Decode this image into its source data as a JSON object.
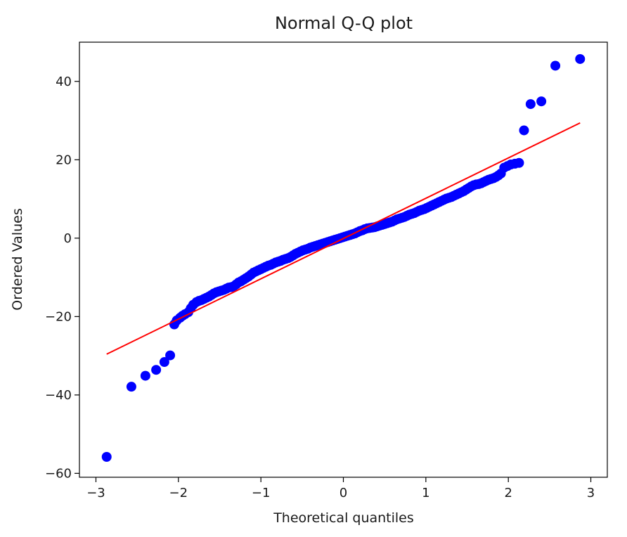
{
  "chart_data": {
    "type": "scatter",
    "title": "Normal Q-Q plot",
    "xlabel": "Theoretical quantiles",
    "ylabel": "Ordered Values",
    "xlim": [
      -3.2,
      3.2
    ],
    "ylim": [
      -61,
      50
    ],
    "grid": false,
    "x_ticks": [
      -3,
      -2,
      -1,
      0,
      1,
      2,
      3
    ],
    "y_ticks": [
      -60,
      -40,
      -20,
      0,
      20,
      40
    ],
    "x_tick_labels": [
      "−3",
      "−2",
      "−1",
      "0",
      "1",
      "2",
      "3"
    ],
    "y_tick_labels": [
      "−60",
      "−40",
      "−20",
      "0",
      "20",
      "40"
    ],
    "colors": {
      "points": "#0000ff",
      "fit_line": "#ff0000"
    },
    "fit_line": {
      "x": [
        -2.87,
        2.87
      ],
      "y": [
        -29.6,
        29.4
      ]
    },
    "series": [
      {
        "x": [
          -2.87,
          -2.57,
          -2.4,
          -2.27,
          -2.17,
          -2.1,
          -2.05,
          -2.02,
          -1.98,
          -1.95,
          -1.92,
          -1.88,
          -1.85,
          -1.82,
          -1.78,
          -1.75,
          -1.72,
          -1.69,
          -1.66,
          -1.63,
          -1.6,
          -1.57,
          -1.54,
          -1.51,
          -1.48,
          -1.45,
          -1.42,
          -1.39,
          -1.36,
          -1.33,
          -1.3,
          -1.27,
          -1.24,
          -1.21,
          -1.18,
          -1.15,
          -1.12,
          -1.09,
          -1.06,
          -1.03,
          -1.0,
          -0.97,
          -0.94,
          -0.91,
          -0.88,
          -0.85,
          -0.82,
          -0.79,
          -0.76,
          -0.73,
          -0.7,
          -0.67,
          -0.64,
          -0.61,
          -0.58,
          -0.55,
          -0.52,
          -0.49,
          -0.46,
          -0.43,
          -0.4,
          -0.37,
          -0.34,
          -0.31,
          -0.28,
          -0.25,
          -0.22,
          -0.19,
          -0.16,
          -0.13,
          -0.1,
          -0.07,
          -0.04,
          -0.01,
          0.02,
          0.05,
          0.08,
          0.11,
          0.14,
          0.17,
          0.2,
          0.23,
          0.26,
          0.29,
          0.32,
          0.35,
          0.38,
          0.41,
          0.44,
          0.47,
          0.5,
          0.53,
          0.56,
          0.59,
          0.62,
          0.65,
          0.68,
          0.71,
          0.74,
          0.77,
          0.8,
          0.83,
          0.86,
          0.89,
          0.92,
          0.95,
          0.98,
          1.01,
          1.04,
          1.07,
          1.1,
          1.13,
          1.16,
          1.19,
          1.22,
          1.25,
          1.28,
          1.31,
          1.34,
          1.37,
          1.4,
          1.43,
          1.46,
          1.49,
          1.52,
          1.55,
          1.58,
          1.61,
          1.64,
          1.67,
          1.7,
          1.73,
          1.76,
          1.79,
          1.82,
          1.85,
          1.88,
          1.91,
          1.95,
          1.99,
          2.03,
          2.08,
          2.13,
          2.19,
          2.27,
          2.4,
          2.57,
          2.87
        ],
        "y": [
          -55.8,
          -37.9,
          -35.1,
          -33.6,
          -31.6,
          -29.9,
          -22.0,
          -21.0,
          -20.3,
          -19.8,
          -19.4,
          -18.9,
          -17.9,
          -17.0,
          -16.3,
          -16.0,
          -15.8,
          -15.5,
          -15.2,
          -14.9,
          -14.5,
          -14.1,
          -13.8,
          -13.6,
          -13.4,
          -13.2,
          -12.9,
          -12.6,
          -12.5,
          -12.3,
          -11.8,
          -11.3,
          -11.0,
          -10.6,
          -10.2,
          -9.8,
          -9.3,
          -8.8,
          -8.5,
          -8.2,
          -7.9,
          -7.6,
          -7.3,
          -7.0,
          -6.8,
          -6.5,
          -6.2,
          -6.0,
          -5.8,
          -5.5,
          -5.3,
          -5.1,
          -4.8,
          -4.4,
          -4.0,
          -3.7,
          -3.4,
          -3.1,
          -2.9,
          -2.7,
          -2.4,
          -2.2,
          -2.0,
          -1.8,
          -1.6,
          -1.4,
          -1.2,
          -1.0,
          -0.8,
          -0.6,
          -0.4,
          -0.2,
          0.0,
          0.2,
          0.4,
          0.6,
          0.8,
          1.0,
          1.2,
          1.5,
          1.8,
          2.0,
          2.3,
          2.5,
          2.6,
          2.7,
          2.8,
          3.0,
          3.2,
          3.4,
          3.6,
          3.8,
          4.0,
          4.2,
          4.5,
          4.8,
          5.0,
          5.2,
          5.4,
          5.7,
          6.0,
          6.2,
          6.4,
          6.7,
          7.0,
          7.2,
          7.4,
          7.7,
          8.0,
          8.3,
          8.6,
          8.9,
          9.2,
          9.5,
          9.8,
          10.1,
          10.3,
          10.5,
          10.8,
          11.1,
          11.4,
          11.7,
          12.0,
          12.4,
          12.8,
          13.2,
          13.5,
          13.7,
          13.8,
          14.0,
          14.3,
          14.6,
          14.9,
          15.1,
          15.3,
          15.6,
          16.0,
          16.5,
          18.0,
          18.4,
          18.8,
          19.0,
          19.2,
          27.5,
          34.2,
          34.9,
          44.0,
          45.7
        ]
      }
    ]
  }
}
